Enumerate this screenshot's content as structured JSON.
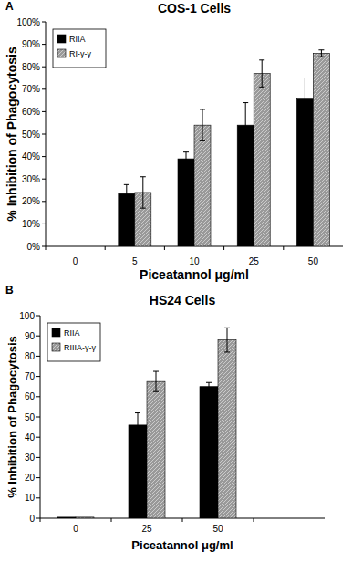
{
  "chart_data": [
    {
      "type": "bar",
      "title": "COS-1 Cells",
      "annotations": [
        "A"
      ],
      "x_label": "Piceatannol μg/ml",
      "y_label": "% Inhibition of Phagocytosis",
      "categories": [
        "0",
        "5",
        "10",
        "25",
        "50"
      ],
      "series": [
        {
          "name": "RIIA",
          "color": "#000000",
          "values": [
            0,
            23.5,
            39,
            54,
            66
          ],
          "errors": [
            0,
            4,
            3,
            10,
            9
          ]
        },
        {
          "name": "RI-γ-γ",
          "color": "#999999",
          "values": [
            0,
            24,
            54,
            77,
            86
          ],
          "errors": [
            0,
            7,
            7,
            6,
            1.5
          ]
        }
      ],
      "ylim": [
        0,
        100
      ],
      "yticks": [
        {
          "value": 0,
          "label": "0%"
        },
        {
          "value": 10,
          "label": "10%"
        },
        {
          "value": 20,
          "label": "20%"
        },
        {
          "value": 30,
          "label": "30%"
        },
        {
          "value": 40,
          "label": "40%"
        },
        {
          "value": 50,
          "label": "50%"
        },
        {
          "value": 60,
          "label": "60%"
        },
        {
          "value": 70,
          "label": "70%"
        },
        {
          "value": 80,
          "label": "80%"
        },
        {
          "value": 90,
          "label": "90%"
        },
        {
          "value": 100,
          "label": "100%"
        }
      ],
      "grid": false,
      "legend": "top-left"
    },
    {
      "type": "bar",
      "title": "HS24 Cells",
      "annotations": [
        "B"
      ],
      "x_label": "Piceatannol μg/ml",
      "y_label": "% Inhibition of Phagocytosis",
      "categories": [
        "0",
        "25",
        "50",
        null
      ],
      "series": [
        {
          "name": "RIIA",
          "color": "#000000",
          "values": [
            0.5,
            46,
            65,
            null
          ],
          "errors": [
            0,
            6,
            2,
            null
          ]
        },
        {
          "name": "RIIIA-γ-γ",
          "color": "#999999",
          "values": [
            0.5,
            67.5,
            88,
            null
          ],
          "errors": [
            0,
            5,
            6,
            null
          ]
        }
      ],
      "ylim": [
        0,
        100
      ],
      "yticks": [
        0,
        10,
        20,
        30,
        40,
        50,
        60,
        70,
        80,
        90,
        100
      ],
      "grid": false,
      "legend": "top-left"
    }
  ]
}
